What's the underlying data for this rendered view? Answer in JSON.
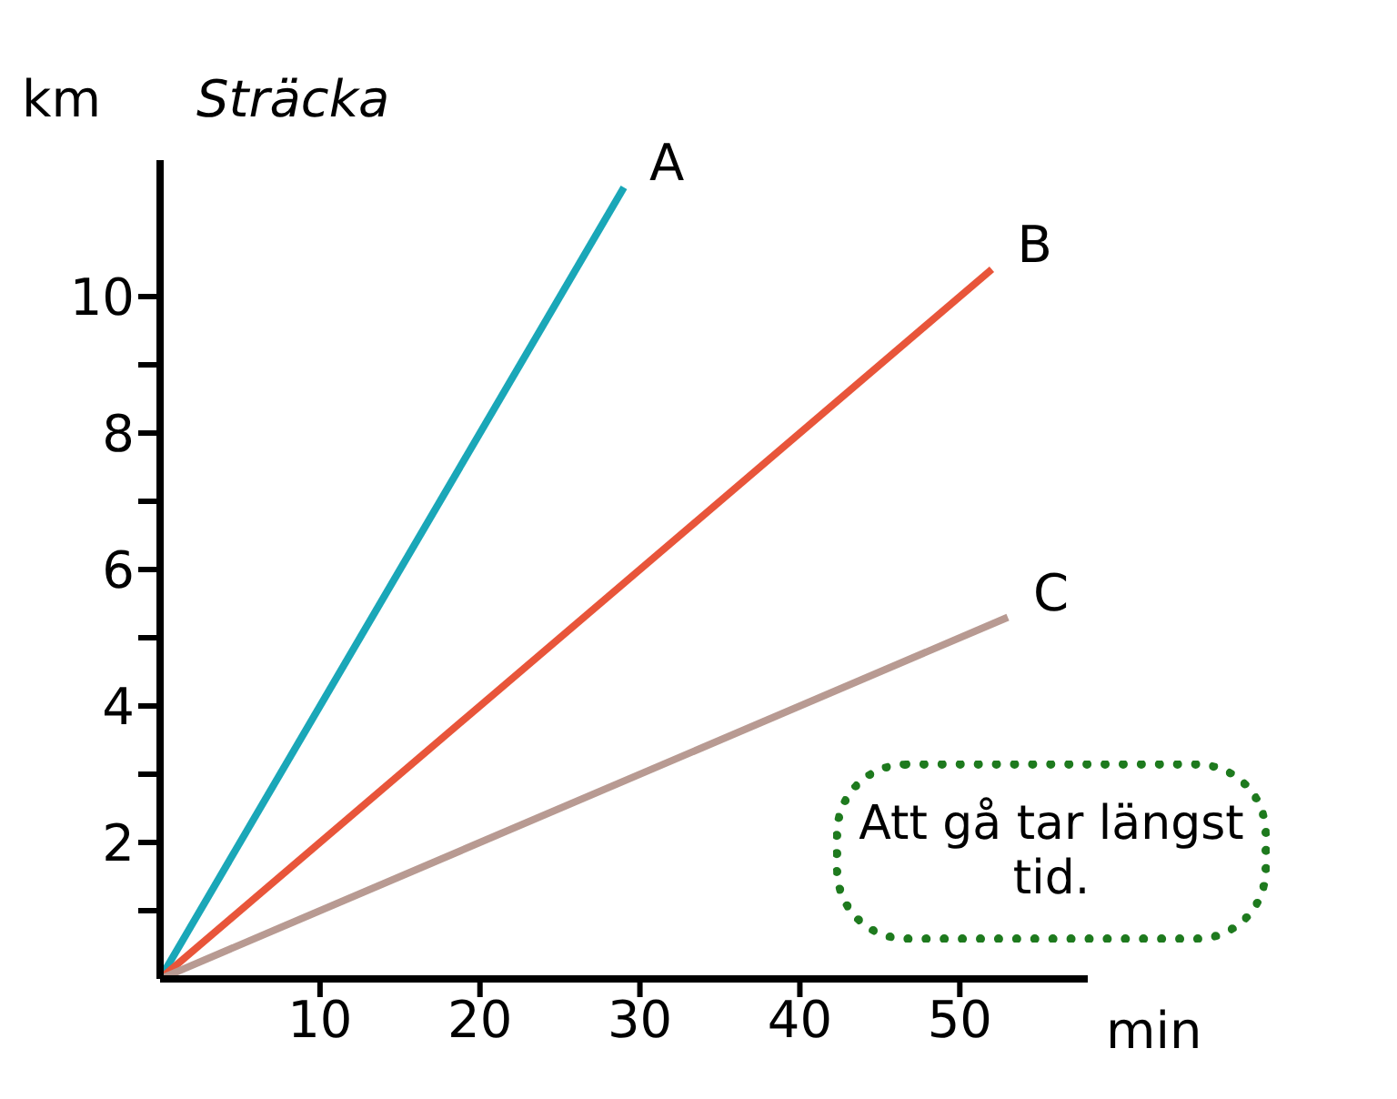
{
  "chart_data": {
    "type": "line",
    "ylabel": "Sträcka",
    "xlabel": "min",
    "annotations": [
      "km",
      "Att gå tar längst tid."
    ],
    "series": [
      {
        "name": "A",
        "color": "#1aa7b8",
        "x": [
          0,
          29
        ],
        "values": [
          0,
          11.6
        ]
      },
      {
        "name": "B",
        "color": "#e8553a",
        "x": [
          0,
          52
        ],
        "values": [
          0,
          10.4
        ]
      },
      {
        "name": "C",
        "color": "#b89a92",
        "x": [
          0,
          53
        ],
        "values": [
          0,
          5.3
        ]
      }
    ],
    "xlim": [
      0,
      58
    ],
    "xticks": [
      10,
      20,
      30,
      40,
      50
    ],
    "ylim": [
      0,
      12
    ],
    "yticks": [
      {
        "value": 1,
        "label": null
      },
      2,
      {
        "value": 3,
        "label": null
      },
      4,
      {
        "value": 5,
        "label": null
      },
      6,
      {
        "value": 7,
        "label": null
      },
      8,
      {
        "value": 9,
        "label": null
      },
      10
    ],
    "grid": false,
    "legend": false,
    "marker": "none",
    "line_style": "solid"
  }
}
